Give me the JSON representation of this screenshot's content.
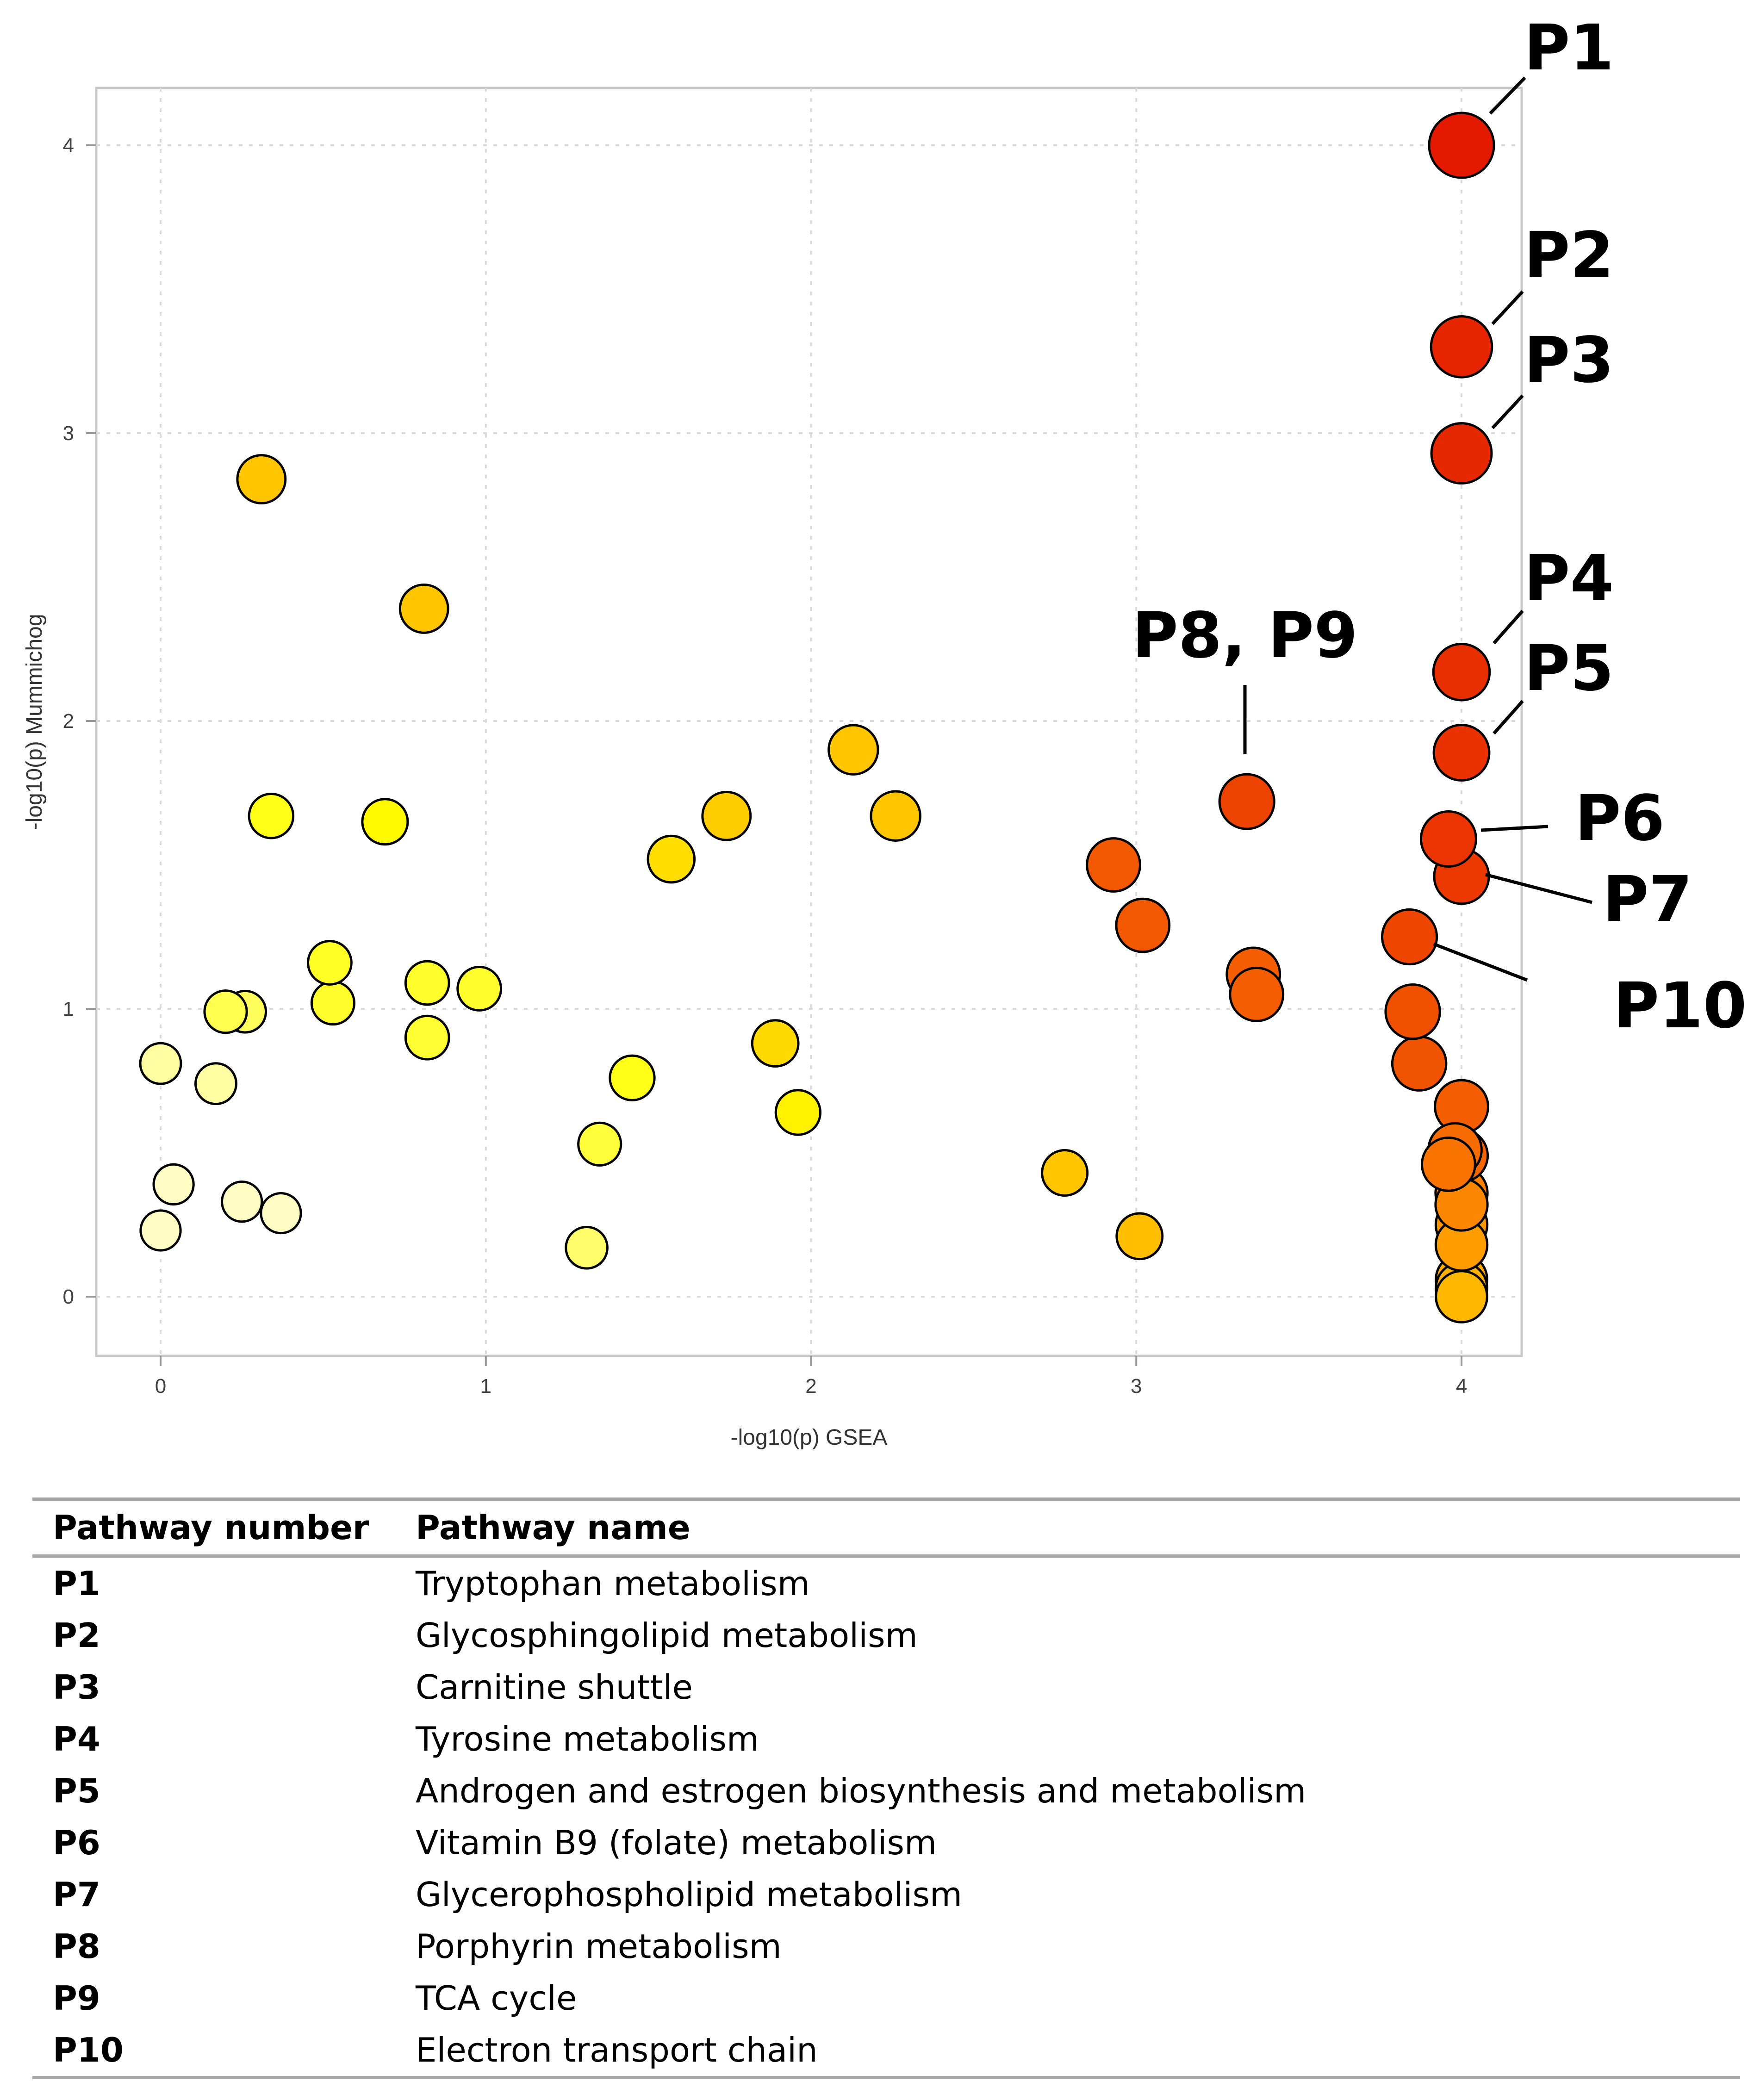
{
  "chart_data": {
    "type": "scatter",
    "xlabel": "-log10(p) GSEA",
    "ylabel": "-log10(p) Mummichog",
    "xlim": [
      -0.2,
      4.2
    ],
    "ylim": [
      -0.2,
      4.2
    ],
    "x_ticks": [
      "0",
      "1",
      "2",
      "3",
      "4"
    ],
    "y_ticks": [
      "0",
      "1",
      "2",
      "3",
      "4"
    ],
    "grid": true,
    "color_scale": [
      "#fffbe6",
      "#ffff00",
      "#ff8c00",
      "#e31a00"
    ],
    "size_encoding": "larger and redder points indicate stronger combined significance",
    "points": [
      {
        "x": 4.0,
        "y": 4.0,
        "label": "P1",
        "c": 1.0,
        "s": 1.0
      },
      {
        "x": 4.0,
        "y": 3.3,
        "label": "P2",
        "c": 0.97,
        "s": 0.9
      },
      {
        "x": 4.0,
        "y": 2.93,
        "label": "P3",
        "c": 0.96,
        "s": 0.88
      },
      {
        "x": 4.0,
        "y": 2.17,
        "label": "P4",
        "c": 0.94,
        "s": 0.78
      },
      {
        "x": 4.0,
        "y": 1.89,
        "label": "P5",
        "c": 0.93,
        "s": 0.76
      },
      {
        "x": 3.96,
        "y": 1.59,
        "label": "P6",
        "c": 0.92,
        "s": 0.75
      },
      {
        "x": 4.0,
        "y": 1.46,
        "label": "P7",
        "c": 0.91,
        "s": 0.74
      },
      {
        "x": 3.34,
        "y": 1.72,
        "label": "P8, P9",
        "c": 0.88,
        "s": 0.74
      },
      {
        "x": 3.84,
        "y": 1.25,
        "label": "P10",
        "c": 0.87,
        "s": 0.74
      },
      {
        "x": 3.85,
        "y": 0.99,
        "c": 0.84,
        "s": 0.73
      },
      {
        "x": 3.87,
        "y": 0.81,
        "c": 0.83,
        "s": 0.72
      },
      {
        "x": 4.0,
        "y": 0.66,
        "c": 0.8,
        "s": 0.7
      },
      {
        "x": 4.0,
        "y": 0.49,
        "c": 0.78,
        "s": 0.68
      },
      {
        "x": 3.98,
        "y": 0.51,
        "c": 0.76,
        "s": 0.7
      },
      {
        "x": 3.96,
        "y": 0.46,
        "c": 0.74,
        "s": 0.7
      },
      {
        "x": 4.0,
        "y": 0.36,
        "c": 0.7,
        "s": 0.67
      },
      {
        "x": 4.0,
        "y": 0.32,
        "c": 0.68,
        "s": 0.67
      },
      {
        "x": 4.0,
        "y": 0.25,
        "c": 0.64,
        "s": 0.66
      },
      {
        "x": 4.0,
        "y": 0.18,
        "c": 0.62,
        "s": 0.66
      },
      {
        "x": 4.0,
        "y": 0.06,
        "c": 0.58,
        "s": 0.65
      },
      {
        "x": 4.0,
        "y": 0.03,
        "c": 0.56,
        "s": 0.65
      },
      {
        "x": 4.0,
        "y": 0.0,
        "c": 0.54,
        "s": 0.65
      },
      {
        "x": 2.93,
        "y": 1.5,
        "c": 0.82,
        "s": 0.7
      },
      {
        "x": 3.02,
        "y": 1.29,
        "c": 0.82,
        "s": 0.7
      },
      {
        "x": 3.36,
        "y": 1.12,
        "c": 0.8,
        "s": 0.7
      },
      {
        "x": 3.37,
        "y": 1.05,
        "c": 0.8,
        "s": 0.7
      },
      {
        "x": 0.31,
        "y": 2.84,
        "c": 0.5,
        "s": 0.57
      },
      {
        "x": 0.81,
        "y": 2.39,
        "c": 0.5,
        "s": 0.57
      },
      {
        "x": 2.13,
        "y": 1.9,
        "c": 0.5,
        "s": 0.6
      },
      {
        "x": 2.26,
        "y": 1.67,
        "c": 0.5,
        "s": 0.6
      },
      {
        "x": 1.74,
        "y": 1.67,
        "c": 0.48,
        "s": 0.57
      },
      {
        "x": 1.57,
        "y": 1.52,
        "c": 0.43,
        "s": 0.53
      },
      {
        "x": 0.34,
        "y": 1.67,
        "c": 0.3,
        "s": 0.47
      },
      {
        "x": 0.69,
        "y": 1.65,
        "c": 0.35,
        "s": 0.5
      },
      {
        "x": 0.52,
        "y": 1.16,
        "c": 0.28,
        "s": 0.45
      },
      {
        "x": 0.53,
        "y": 1.02,
        "c": 0.27,
        "s": 0.43
      },
      {
        "x": 0.82,
        "y": 1.09,
        "c": 0.27,
        "s": 0.45
      },
      {
        "x": 0.98,
        "y": 1.07,
        "c": 0.27,
        "s": 0.45
      },
      {
        "x": 0.82,
        "y": 0.9,
        "c": 0.26,
        "s": 0.45
      },
      {
        "x": 0.2,
        "y": 0.99,
        "c": 0.22,
        "s": 0.42
      },
      {
        "x": 0.26,
        "y": 0.99,
        "c": 0.2,
        "s": 0.4
      },
      {
        "x": 1.89,
        "y": 0.88,
        "c": 0.44,
        "s": 0.52
      },
      {
        "x": 1.45,
        "y": 0.76,
        "c": 0.3,
        "s": 0.48
      },
      {
        "x": 1.96,
        "y": 0.64,
        "c": 0.37,
        "s": 0.48
      },
      {
        "x": 1.35,
        "y": 0.53,
        "c": 0.25,
        "s": 0.43
      },
      {
        "x": 1.31,
        "y": 0.17,
        "c": 0.18,
        "s": 0.4
      },
      {
        "x": 2.78,
        "y": 0.43,
        "c": 0.5,
        "s": 0.5
      },
      {
        "x": 3.01,
        "y": 0.21,
        "c": 0.52,
        "s": 0.51
      },
      {
        "x": 0.0,
        "y": 0.81,
        "c": 0.1,
        "s": 0.38
      },
      {
        "x": 0.17,
        "y": 0.74,
        "c": 0.1,
        "s": 0.38
      },
      {
        "x": 0.04,
        "y": 0.39,
        "c": 0.05,
        "s": 0.36
      },
      {
        "x": 0.25,
        "y": 0.33,
        "c": 0.05,
        "s": 0.36
      },
      {
        "x": 0.37,
        "y": 0.29,
        "c": 0.05,
        "s": 0.36
      },
      {
        "x": 0.0,
        "y": 0.23,
        "c": 0.05,
        "s": 0.36
      }
    ],
    "callouts": [
      "P1",
      "P2",
      "P3",
      "P4",
      "P5",
      "P6",
      "P7",
      "P8, P9",
      "P10"
    ]
  },
  "legend_table": {
    "headers": [
      "Pathway number",
      "Pathway name"
    ],
    "rows": [
      [
        "P1",
        "Tryptophan metabolism"
      ],
      [
        "P2",
        "Glycosphingolipid metabolism"
      ],
      [
        "P3",
        "Carnitine shuttle"
      ],
      [
        "P4",
        "Tyrosine metabolism"
      ],
      [
        "P5",
        "Androgen and estrogen biosynthesis and metabolism"
      ],
      [
        "P6",
        "Vitamin B9 (folate) metabolism"
      ],
      [
        "P7",
        "Glycerophospholipid metabolism"
      ],
      [
        "P8",
        "Porphyrin metabolism"
      ],
      [
        "P9",
        "TCA cycle"
      ],
      [
        "P10",
        "Electron transport chain"
      ]
    ]
  }
}
